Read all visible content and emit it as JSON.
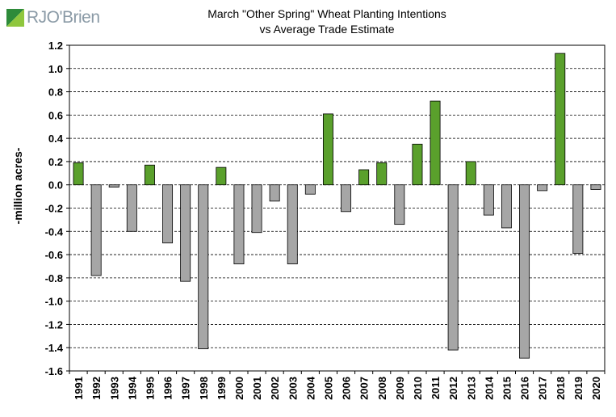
{
  "logo": {
    "text": "RJO'Brien"
  },
  "chart_data": {
    "type": "bar",
    "title": "March \"Other Spring\" Wheat Planting Intentions",
    "subtitle": "vs Average Trade Estimate",
    "xlabel": "",
    "ylabel": "-million acres-",
    "ylim": [
      -1.6,
      1.2
    ],
    "yticks": [
      "1.2",
      "1.0",
      "0.8",
      "0.6",
      "0.4",
      "0.2",
      "0.0",
      "-0.2",
      "-0.4",
      "-0.6",
      "-0.8",
      "-1.0",
      "-1.2",
      "-1.4",
      "-1.6"
    ],
    "grid": true,
    "colors": {
      "positive": "#5aa02c",
      "negative": "#a6a6a6"
    },
    "categories": [
      "1991",
      "1992",
      "1993",
      "1994",
      "1995",
      "1996",
      "1997",
      "1998",
      "1999",
      "2000",
      "2001",
      "2002",
      "2003",
      "2004",
      "2005",
      "2006",
      "2007",
      "2008",
      "2009",
      "2010",
      "2011",
      "2012",
      "2013",
      "2014",
      "2015",
      "2016",
      "2017",
      "2018",
      "2019",
      "2020"
    ],
    "values": [
      0.19,
      -0.78,
      -0.02,
      -0.4,
      0.17,
      -0.5,
      -0.83,
      -1.41,
      0.15,
      -0.68,
      -0.41,
      -0.14,
      -0.68,
      -0.08,
      0.61,
      -0.23,
      0.13,
      0.19,
      -0.34,
      0.35,
      0.72,
      -1.42,
      0.2,
      -0.26,
      -0.37,
      -1.49,
      -0.05,
      1.13,
      -0.59,
      -0.04
    ]
  }
}
